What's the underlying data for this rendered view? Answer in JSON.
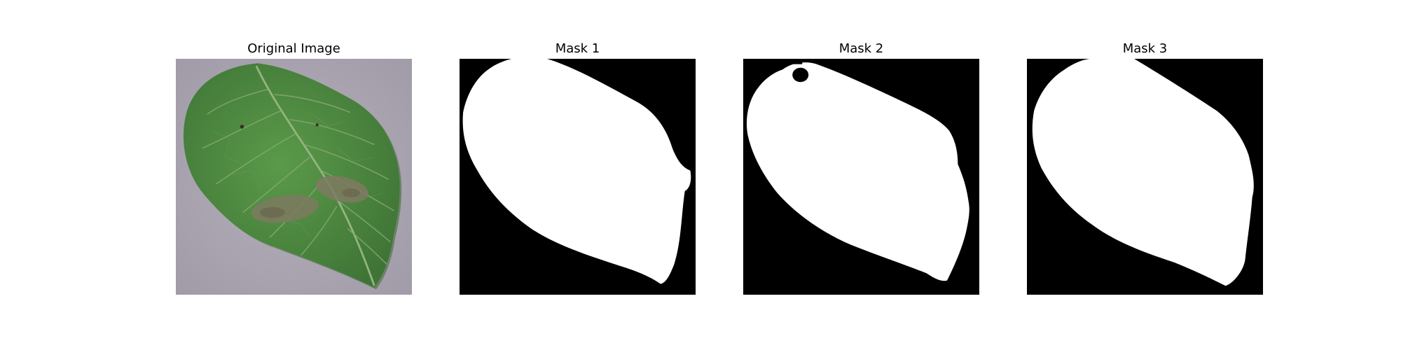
{
  "panels": [
    {
      "title": "Original Image"
    },
    {
      "title": "Mask 1"
    },
    {
      "title": "Mask 2"
    },
    {
      "title": "Mask 3"
    }
  ],
  "colors": {
    "background": "#aaa5b0",
    "leaf": "#4f8a42",
    "leaf_dark": "#3b6e33",
    "vein": "#8fb07a",
    "lesion": "#7d7a5e",
    "mask_bg": "#000000",
    "mask_fg": "#ffffff"
  }
}
